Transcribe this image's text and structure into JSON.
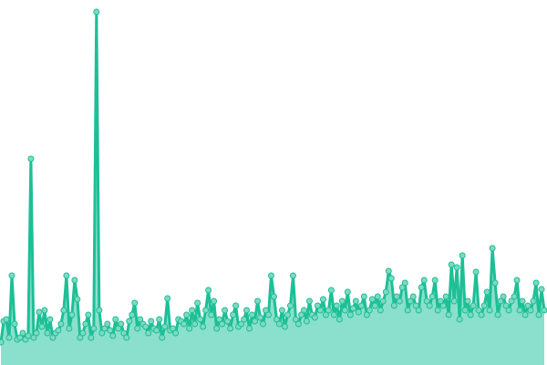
{
  "chart_data": {
    "type": "area",
    "title": "",
    "xlabel": "",
    "ylabel": "",
    "ylim": [
      0,
      400
    ],
    "grid": false,
    "axes_visible": false,
    "legend": "none",
    "colors": {
      "line": "#1dbf96",
      "area": "#8ae0cd",
      "marker_fill": "#7fd9c2",
      "marker_stroke": "#1dbf96"
    },
    "series": [
      {
        "values": [
          25,
          48,
          50,
          30,
          98,
          45,
          28,
          30,
          35,
          28,
          32,
          226,
          30,
          35,
          58,
          42,
          60,
          35,
          50,
          30,
          35,
          38,
          45,
          60,
          98,
          40,
          55,
          93,
          72,
          30,
          35,
          45,
          55,
          30,
          40,
          387,
          60,
          35,
          40,
          45,
          38,
          32,
          50,
          40,
          45,
          35,
          30,
          48,
          55,
          68,
          40,
          50,
          45,
          42,
          35,
          48,
          40,
          38,
          50,
          30,
          42,
          73,
          38,
          40,
          35,
          50,
          48,
          45,
          55,
          40,
          60,
          45,
          68,
          50,
          42,
          60,
          82,
          55,
          70,
          40,
          50,
          45,
          60,
          48,
          40,
          55,
          65,
          42,
          45,
          50,
          60,
          40,
          55,
          48,
          70,
          52,
          45,
          60,
          55,
          98,
          75,
          50,
          45,
          60,
          42,
          55,
          65,
          98,
          50,
          45,
          55,
          60,
          48,
          70,
          55,
          52,
          65,
          60,
          72,
          55,
          60,
          82,
          55,
          65,
          50,
          70,
          60,
          80,
          55,
          62,
          70,
          58,
          65,
          75,
          55,
          60,
          72,
          65,
          75,
          60,
          70,
          80,
          103,
          95,
          65,
          75,
          70,
          85,
          90,
          60,
          70,
          75,
          65,
          60,
          85,
          93,
          70,
          65,
          75,
          93,
          60,
          70,
          65,
          75,
          55,
          110,
          70,
          107,
          50,
          120,
          60,
          70,
          55,
          65,
          102,
          60,
          55,
          65,
          80,
          60,
          128,
          90,
          55,
          70,
          75,
          65,
          60,
          70,
          75,
          93,
          60,
          70,
          55,
          65,
          60,
          70,
          90,
          55,
          83,
          60
        ]
      }
    ]
  }
}
